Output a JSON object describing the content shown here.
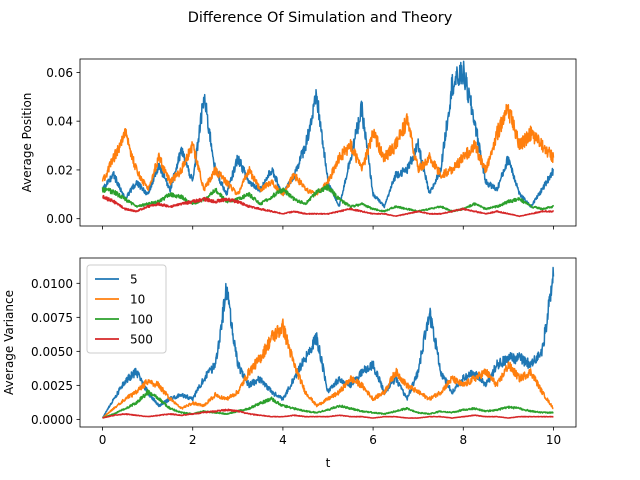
{
  "figure": {
    "title": "Difference Of Simulation and Theory",
    "xlabel": "t"
  },
  "colors": {
    "5": "#1f77b4",
    "10": "#ff7f0e",
    "100": "#2ca02c",
    "500": "#d62728"
  },
  "chart_data": [
    {
      "type": "line",
      "title": "",
      "xlabel": "",
      "ylabel": "Average Position",
      "xlim": [
        -0.5,
        10.5
      ],
      "ylim": [
        -0.003,
        0.0655
      ],
      "xticks": [
        0,
        2,
        4,
        6,
        8,
        10
      ],
      "xticklabels_visible": false,
      "yticks": [
        0.0,
        0.02,
        0.04,
        0.06
      ],
      "yticklabels": [
        "0.00",
        "0.02",
        "0.04",
        "0.06"
      ],
      "legend": "none",
      "grid": false,
      "series": [
        {
          "name": "5",
          "x": [
            0,
            0.25,
            0.5,
            0.75,
            1,
            1.25,
            1.5,
            1.75,
            2,
            2.25,
            2.5,
            2.75,
            3,
            3.25,
            3.5,
            3.75,
            4,
            4.25,
            4.5,
            4.75,
            5,
            5.25,
            5.5,
            5.75,
            6,
            6.25,
            6.5,
            6.75,
            7,
            7.25,
            7.5,
            7.75,
            8,
            8.25,
            8.5,
            8.75,
            9,
            9.25,
            9.5,
            9.75,
            10
          ],
          "values": [
            0.012,
            0.018,
            0.008,
            0.015,
            0.01,
            0.022,
            0.012,
            0.028,
            0.015,
            0.05,
            0.02,
            0.01,
            0.025,
            0.015,
            0.012,
            0.02,
            0.01,
            0.018,
            0.03,
            0.05,
            0.015,
            0.005,
            0.025,
            0.045,
            0.01,
            0.005,
            0.018,
            0.02,
            0.03,
            0.01,
            0.02,
            0.055,
            0.06,
            0.04,
            0.015,
            0.012,
            0.025,
            0.01,
            0.005,
            0.012,
            0.02
          ]
        },
        {
          "name": "10",
          "x": [
            0,
            0.25,
            0.5,
            0.75,
            1,
            1.25,
            1.5,
            1.75,
            2,
            2.25,
            2.5,
            2.75,
            3,
            3.25,
            3.5,
            3.75,
            4,
            4.25,
            4.5,
            4.75,
            5,
            5.25,
            5.5,
            5.75,
            6,
            6.25,
            6.5,
            6.75,
            7,
            7.25,
            7.5,
            7.75,
            8,
            8.25,
            8.5,
            8.75,
            9,
            9.25,
            9.5,
            9.75,
            10
          ],
          "values": [
            0.015,
            0.025,
            0.035,
            0.02,
            0.012,
            0.025,
            0.015,
            0.02,
            0.03,
            0.012,
            0.02,
            0.015,
            0.01,
            0.02,
            0.012,
            0.015,
            0.01,
            0.018,
            0.012,
            0.01,
            0.015,
            0.025,
            0.03,
            0.02,
            0.035,
            0.025,
            0.03,
            0.04,
            0.02,
            0.025,
            0.018,
            0.02,
            0.025,
            0.03,
            0.02,
            0.035,
            0.045,
            0.03,
            0.035,
            0.03,
            0.025
          ]
        },
        {
          "name": "100",
          "x": [
            0,
            0.25,
            0.5,
            0.75,
            1,
            1.25,
            1.5,
            1.75,
            2,
            2.25,
            2.5,
            2.75,
            3,
            3.25,
            3.5,
            3.75,
            4,
            4.25,
            4.5,
            4.75,
            5,
            5.25,
            5.5,
            5.75,
            6,
            6.25,
            6.5,
            6.75,
            7,
            7.25,
            7.5,
            7.75,
            8,
            8.25,
            8.5,
            8.75,
            9,
            9.25,
            9.5,
            9.75,
            10
          ],
          "values": [
            0.012,
            0.011,
            0.008,
            0.005,
            0.006,
            0.007,
            0.01,
            0.009,
            0.006,
            0.008,
            0.012,
            0.007,
            0.008,
            0.01,
            0.006,
            0.009,
            0.012,
            0.008,
            0.006,
            0.011,
            0.013,
            0.008,
            0.005,
            0.006,
            0.004,
            0.003,
            0.005,
            0.004,
            0.003,
            0.004,
            0.005,
            0.003,
            0.004,
            0.006,
            0.004,
            0.005,
            0.007,
            0.008,
            0.005,
            0.004,
            0.005
          ]
        },
        {
          "name": "500",
          "x": [
            0,
            0.25,
            0.5,
            0.75,
            1,
            1.25,
            1.5,
            1.75,
            2,
            2.25,
            2.5,
            2.75,
            3,
            3.25,
            3.5,
            3.75,
            4,
            4.25,
            4.5,
            4.75,
            5,
            5.25,
            5.5,
            5.75,
            6,
            6.25,
            6.5,
            6.75,
            7,
            7.25,
            7.5,
            7.75,
            8,
            8.25,
            8.5,
            8.75,
            9,
            9.25,
            9.5,
            9.75,
            10
          ],
          "values": [
            0.009,
            0.007,
            0.004,
            0.003,
            0.005,
            0.006,
            0.005,
            0.006,
            0.007,
            0.008,
            0.007,
            0.008,
            0.007,
            0.005,
            0.004,
            0.003,
            0.002,
            0.003,
            0.002,
            0.002,
            0.002,
            0.003,
            0.004,
            0.003,
            0.002,
            0.002,
            0.001,
            0.002,
            0.003,
            0.002,
            0.002,
            0.003,
            0.004,
            0.003,
            0.002,
            0.003,
            0.002,
            0.001,
            0.002,
            0.003,
            0.003
          ]
        }
      ]
    },
    {
      "type": "line",
      "title": "",
      "xlabel": "t",
      "ylabel": "Average Variance",
      "xlim": [
        -0.5,
        10.5
      ],
      "ylim": [
        -0.00056,
        0.01186
      ],
      "xticks": [
        0,
        2,
        4,
        6,
        8,
        10
      ],
      "xticklabels": [
        "0",
        "2",
        "4",
        "6",
        "8",
        "10"
      ],
      "yticks": [
        0.0,
        0.0025,
        0.005,
        0.0075,
        0.01
      ],
      "yticklabels": [
        "0.0000",
        "0.0025",
        "0.0050",
        "0.0075",
        "0.0100"
      ],
      "legend": "upper-left",
      "legend_entries": [
        "5",
        "10",
        "100",
        "500"
      ],
      "grid": false,
      "series": [
        {
          "name": "5",
          "x": [
            0,
            0.25,
            0.5,
            0.75,
            1,
            1.25,
            1.5,
            1.75,
            2,
            2.25,
            2.5,
            2.75,
            3,
            3.25,
            3.5,
            3.75,
            4,
            4.25,
            4.5,
            4.75,
            5,
            5.25,
            5.5,
            5.75,
            6,
            6.25,
            6.5,
            6.75,
            7,
            7.25,
            7.5,
            7.75,
            8,
            8.25,
            8.5,
            8.75,
            9,
            9.25,
            9.5,
            9.75,
            10
          ],
          "values": [
            0.0001,
            0.0015,
            0.0028,
            0.0035,
            0.002,
            0.001,
            0.0015,
            0.0018,
            0.0015,
            0.003,
            0.004,
            0.0095,
            0.004,
            0.0025,
            0.003,
            0.002,
            0.0015,
            0.003,
            0.0045,
            0.006,
            0.002,
            0.003,
            0.0025,
            0.0035,
            0.004,
            0.002,
            0.003,
            0.0015,
            0.0035,
            0.008,
            0.0035,
            0.002,
            0.003,
            0.0035,
            0.0025,
            0.004,
            0.0045,
            0.0045,
            0.004,
            0.005,
            0.0105
          ]
        },
        {
          "name": "10",
          "x": [
            0,
            0.25,
            0.5,
            0.75,
            1,
            1.25,
            1.5,
            1.75,
            2,
            2.25,
            2.5,
            2.75,
            3,
            3.25,
            3.5,
            3.75,
            4,
            4.25,
            4.5,
            4.75,
            5,
            5.25,
            5.5,
            5.75,
            6,
            6.25,
            6.5,
            6.75,
            7,
            7.25,
            7.5,
            7.75,
            8,
            8.25,
            8.5,
            8.75,
            9,
            9.25,
            9.5,
            9.75,
            10
          ],
          "values": [
            0.0001,
            0.0008,
            0.0015,
            0.002,
            0.0028,
            0.0025,
            0.0015,
            0.0008,
            0.0012,
            0.001,
            0.0018,
            0.0015,
            0.002,
            0.0035,
            0.0045,
            0.006,
            0.0068,
            0.004,
            0.002,
            0.001,
            0.0015,
            0.002,
            0.003,
            0.0025,
            0.0015,
            0.002,
            0.0035,
            0.0025,
            0.002,
            0.0015,
            0.002,
            0.003,
            0.0025,
            0.003,
            0.0035,
            0.0025,
            0.004,
            0.003,
            0.0035,
            0.002,
            0.0008
          ]
        },
        {
          "name": "100",
          "x": [
            0,
            0.25,
            0.5,
            0.75,
            1,
            1.25,
            1.5,
            1.75,
            2,
            2.25,
            2.5,
            2.75,
            3,
            3.25,
            3.5,
            3.75,
            4,
            4.25,
            4.5,
            4.75,
            5,
            5.25,
            5.5,
            5.75,
            6,
            6.25,
            6.5,
            6.75,
            7,
            7.25,
            7.5,
            7.75,
            8,
            8.25,
            8.5,
            8.75,
            9,
            9.25,
            9.5,
            9.75,
            10
          ],
          "values": [
            0.0001,
            0.0004,
            0.0008,
            0.0012,
            0.002,
            0.0015,
            0.0008,
            0.0005,
            0.0004,
            0.0006,
            0.0005,
            0.0004,
            0.0006,
            0.0008,
            0.0012,
            0.0015,
            0.001,
            0.0008,
            0.0006,
            0.0005,
            0.0007,
            0.001,
            0.0008,
            0.0006,
            0.0005,
            0.0004,
            0.0006,
            0.0008,
            0.0005,
            0.0004,
            0.0006,
            0.0005,
            0.0007,
            0.0008,
            0.0006,
            0.0007,
            0.0009,
            0.0008,
            0.0006,
            0.0005,
            0.0005
          ]
        },
        {
          "name": "500",
          "x": [
            0,
            0.25,
            0.5,
            0.75,
            1,
            1.25,
            1.5,
            1.75,
            2,
            2.25,
            2.5,
            2.75,
            3,
            3.25,
            3.5,
            3.75,
            4,
            4.25,
            4.5,
            4.75,
            5,
            5.25,
            5.5,
            5.75,
            6,
            6.25,
            6.5,
            6.75,
            7,
            7.25,
            7.5,
            7.75,
            8,
            8.25,
            8.5,
            8.75,
            9,
            9.25,
            9.5,
            9.75,
            10
          ],
          "values": [
            0.0001,
            0.0003,
            0.0004,
            0.0003,
            0.0002,
            0.0003,
            0.0004,
            0.0003,
            0.0004,
            0.0005,
            0.0006,
            0.0007,
            0.0006,
            0.0004,
            0.0003,
            0.0002,
            0.0002,
            0.0003,
            0.0002,
            0.0002,
            0.0002,
            0.0003,
            0.0002,
            0.0002,
            0.0001,
            0.0002,
            0.0002,
            0.0001,
            0.0001,
            0.0002,
            0.0002,
            0.0001,
            0.0002,
            0.0003,
            0.0002,
            0.0002,
            0.0001,
            0.0002,
            0.0002,
            0.0002,
            0.0002
          ]
        }
      ]
    }
  ]
}
